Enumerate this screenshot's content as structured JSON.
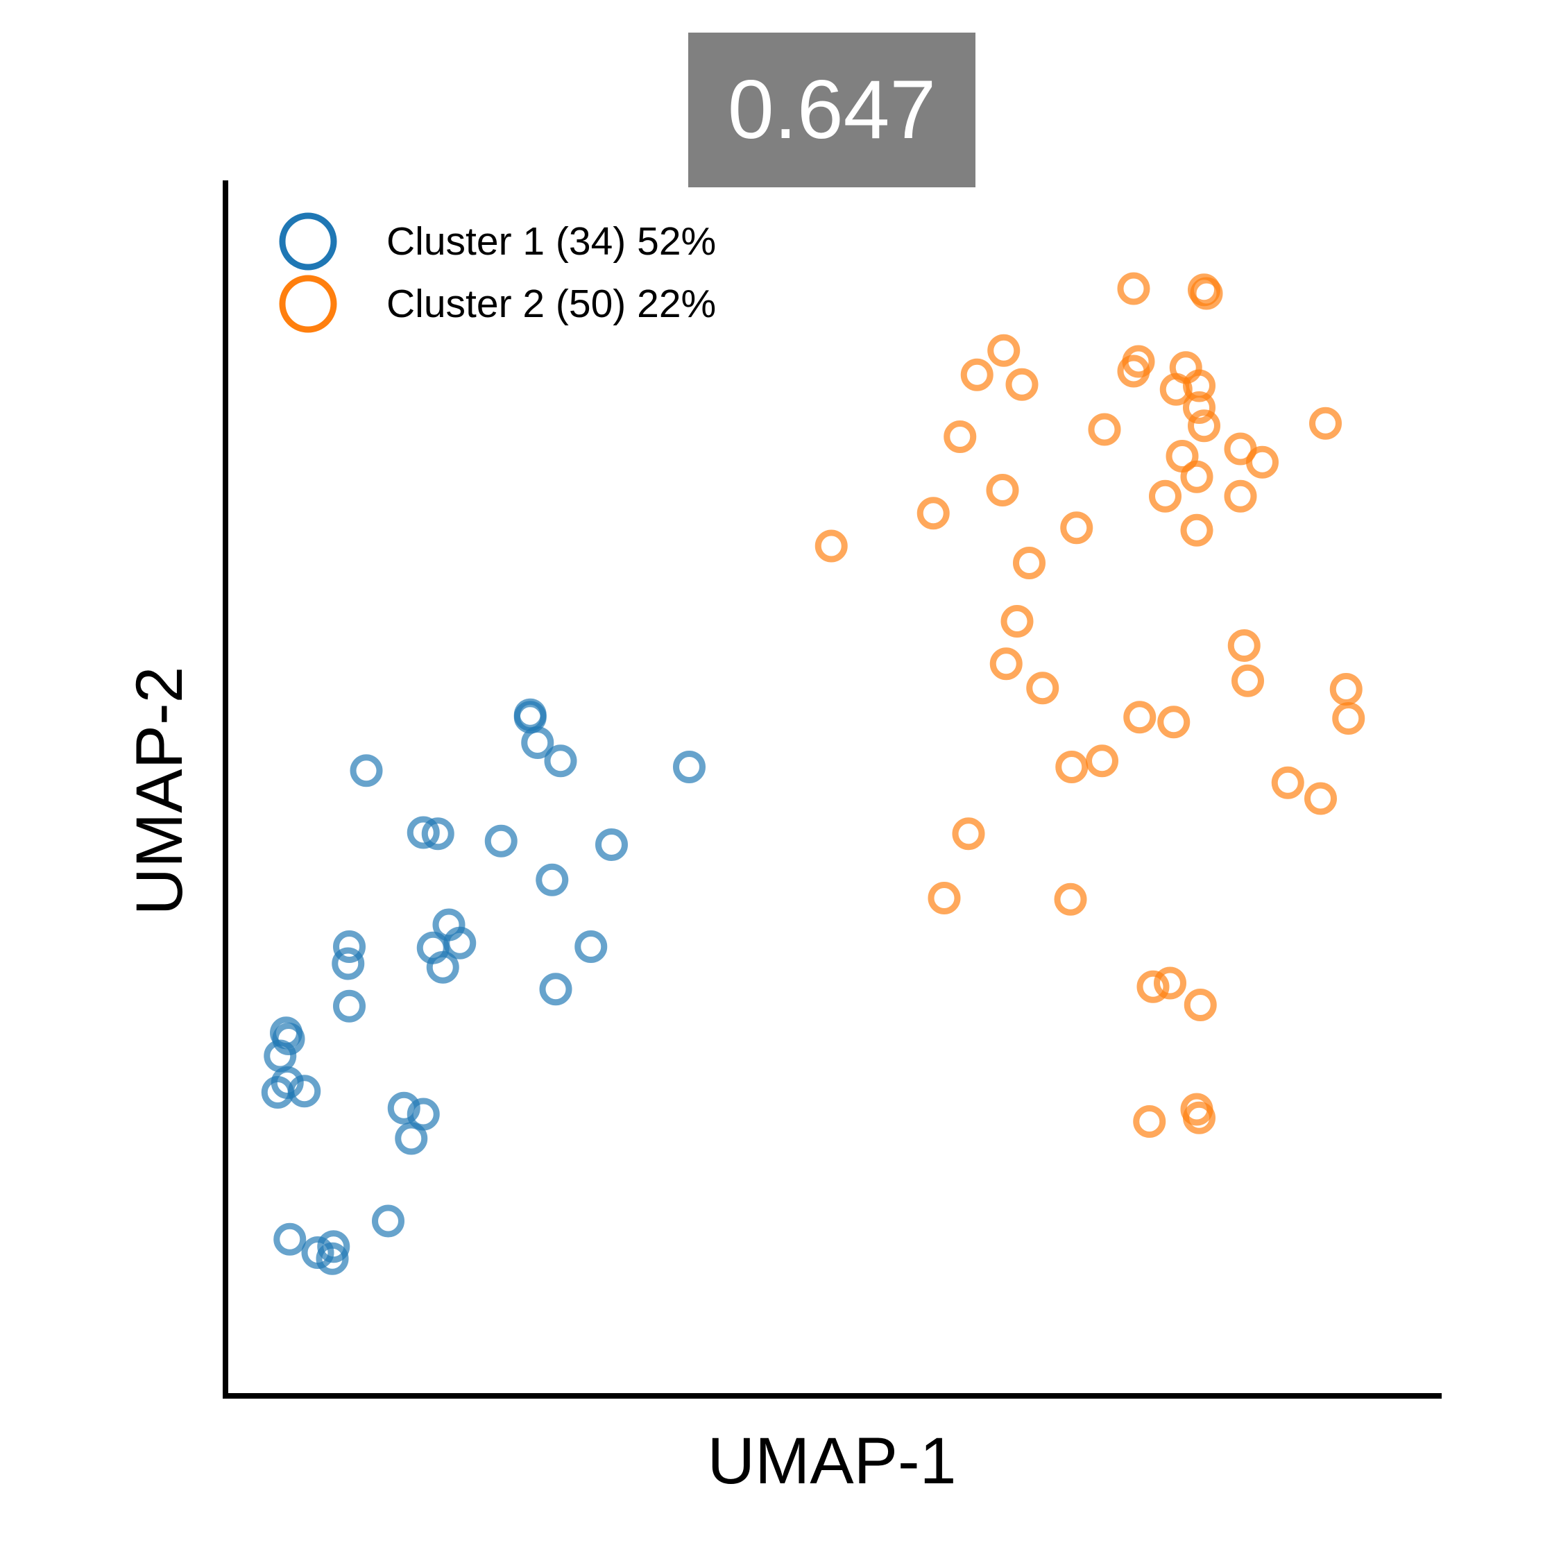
{
  "chart_data": {
    "type": "scatter",
    "title": "0.647",
    "title_box_color": "#808080",
    "title_text_color": "#ffffff",
    "xlabel": "UMAP-1",
    "ylabel": "UMAP-2",
    "xlim": [
      0,
      100
    ],
    "ylim": [
      0,
      100
    ],
    "grid": false,
    "legend_position": "top-left",
    "series": [
      {
        "name": "Cluster 1 (34) 52%",
        "color": "#1f77b4",
        "marker": "open-circle",
        "points": [
          [
            4.3,
            25.0
          ],
          [
            5.1,
            25.8
          ],
          [
            6.5,
            25.1
          ],
          [
            7.6,
            11.8
          ],
          [
            8.8,
            11.3
          ],
          [
            8.9,
            12.3
          ],
          [
            13.4,
            14.4
          ],
          [
            11.6,
            51.5
          ],
          [
            10.2,
            32.1
          ],
          [
            5.2,
            29.4
          ],
          [
            10.1,
            35.6
          ],
          [
            5.3,
            12.9
          ],
          [
            4.5,
            28.0
          ],
          [
            5.0,
            29.9
          ],
          [
            10.2,
            37.0
          ],
          [
            15.3,
            21.2
          ],
          [
            16.3,
            23.2
          ],
          [
            17.1,
            36.9
          ],
          [
            17.5,
            46.3
          ],
          [
            18.4,
            38.8
          ],
          [
            27.2,
            33.5
          ],
          [
            16.3,
            46.4
          ],
          [
            17.9,
            35.3
          ],
          [
            14.7,
            23.7
          ],
          [
            19.3,
            37.3
          ],
          [
            30.1,
            37.0
          ],
          [
            22.7,
            45.7
          ],
          [
            26.9,
            42.5
          ],
          [
            25.7,
            53.8
          ],
          [
            25.1,
            55.9
          ],
          [
            27.6,
            52.3
          ],
          [
            31.8,
            45.4
          ],
          [
            25.1,
            56.1
          ],
          [
            38.2,
            51.8
          ]
        ]
      },
      {
        "name": "Cluster 2 (50) 22%",
        "color": "#ff7f0e",
        "marker": "open-circle",
        "points": [
          [
            80.6,
            91.1
          ],
          [
            90.6,
            80.1
          ],
          [
            78.3,
            82.9
          ],
          [
            79.1,
            84.7
          ],
          [
            80.8,
            90.8
          ],
          [
            74.8,
            84.4
          ],
          [
            74.8,
            91.2
          ],
          [
            64.1,
            86.1
          ],
          [
            72.4,
            79.6
          ],
          [
            65.6,
            83.3
          ],
          [
            80.2,
            83.2
          ],
          [
            80.2,
            81.4
          ],
          [
            83.6,
            74.1
          ],
          [
            60.5,
            79.0
          ],
          [
            58.3,
            72.7
          ],
          [
            49.9,
            70.0
          ],
          [
            64.0,
            74.6
          ],
          [
            70.1,
            71.5
          ],
          [
            80.6,
            79.9
          ],
          [
            80.0,
            71.3
          ],
          [
            85.4,
            76.9
          ],
          [
            75.2,
            85.2
          ],
          [
            78.8,
            77.4
          ],
          [
            80.0,
            75.7
          ],
          [
            83.6,
            78.0
          ],
          [
            66.2,
            68.6
          ],
          [
            61.9,
            84.1
          ],
          [
            84.2,
            58.9
          ],
          [
            87.5,
            50.5
          ],
          [
            92.5,
            55.8
          ],
          [
            83.9,
            61.8
          ],
          [
            92.3,
            58.2
          ],
          [
            90.2,
            49.2
          ],
          [
            75.3,
            55.9
          ],
          [
            77.4,
            74.1
          ],
          [
            78.1,
            55.5
          ],
          [
            67.3,
            58.3
          ],
          [
            69.7,
            51.8
          ],
          [
            64.3,
            60.3
          ],
          [
            61.2,
            46.3
          ],
          [
            59.2,
            41.0
          ],
          [
            69.6,
            40.9
          ],
          [
            72.2,
            52.3
          ],
          [
            65.2,
            63.8
          ],
          [
            77.8,
            34.0
          ],
          [
            76.4,
            33.7
          ],
          [
            80.3,
            32.2
          ],
          [
            80.0,
            23.6
          ],
          [
            80.2,
            22.9
          ],
          [
            76.1,
            22.6
          ]
        ]
      }
    ]
  }
}
